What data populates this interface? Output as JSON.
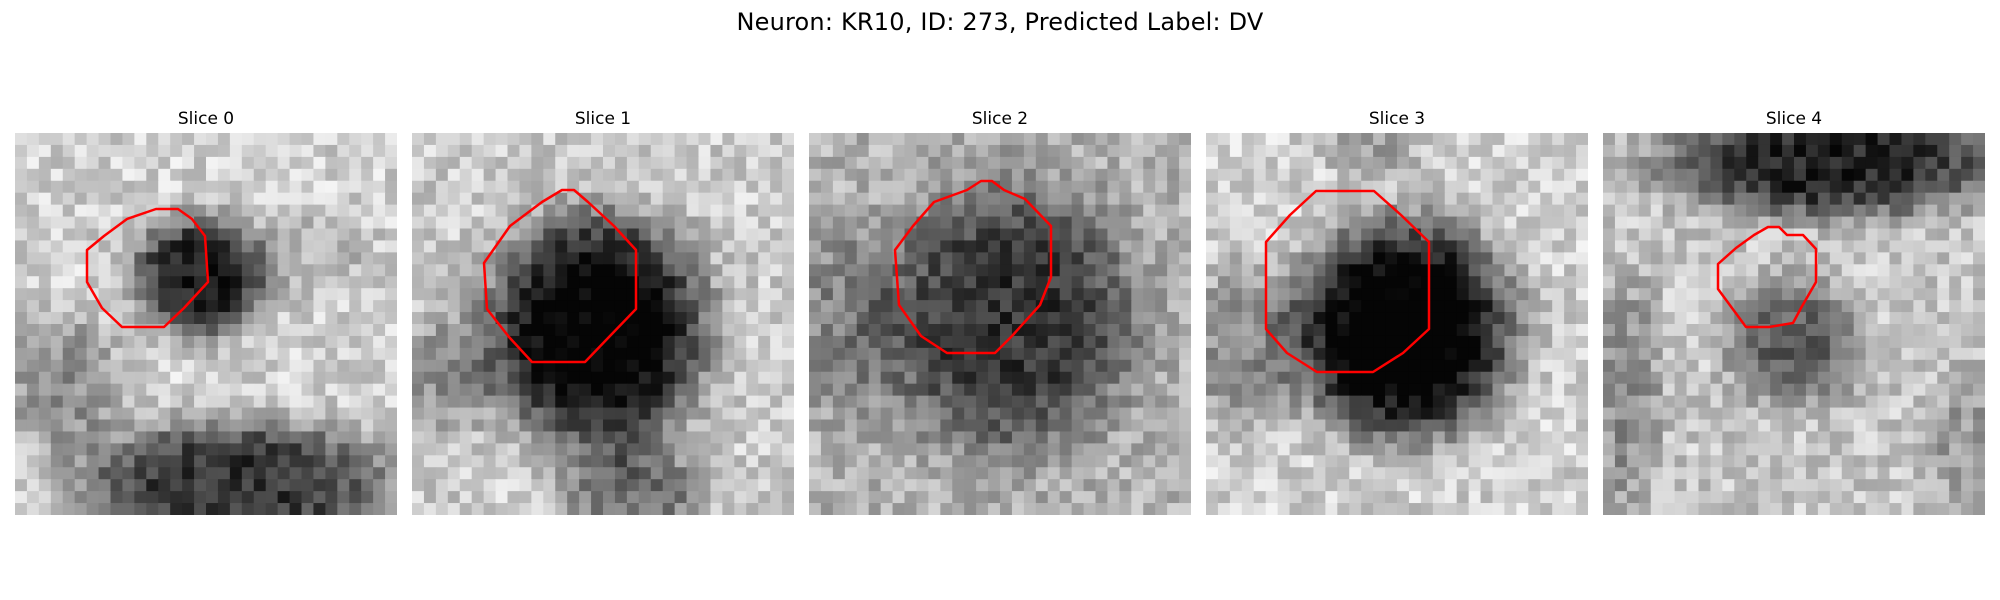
{
  "figure": {
    "title": "Neuron: KR10, ID: 273, Predicted Label: DV"
  },
  "colors": {
    "contour": "#ff0000",
    "background": "#ffffff"
  },
  "slices": [
    {
      "title": "Slice 0",
      "contour_label": "red-contour"
    },
    {
      "title": "Slice 1",
      "contour_label": "red-contour"
    },
    {
      "title": "Slice 2",
      "contour_label": "red-contour"
    },
    {
      "title": "Slice 3",
      "contour_label": "red-contour"
    },
    {
      "title": "Slice 4",
      "contour_label": "red-contour"
    }
  ]
}
